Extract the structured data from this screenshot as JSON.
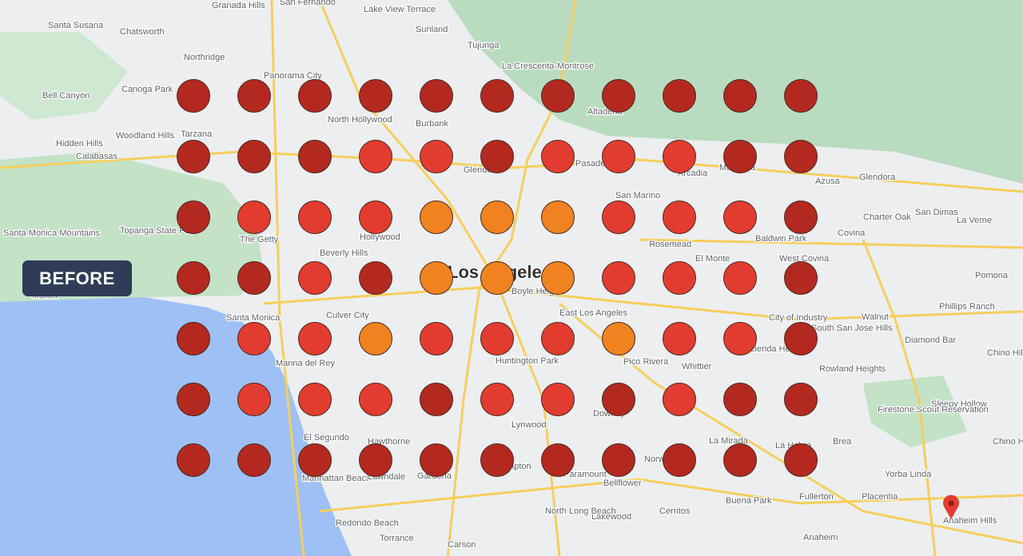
{
  "badge": "BEFORE",
  "legend_colors": {
    "low": "#b3291f",
    "mid": "#e23c30",
    "top": "#f0821f"
  },
  "grid": {
    "rows": [
      [
        "low",
        "low",
        "low",
        "low",
        "low",
        "low",
        "low",
        "low",
        "low",
        "low",
        "low"
      ],
      [
        "low",
        "low",
        "low",
        "mid",
        "mid",
        "low",
        "mid",
        "mid",
        "mid",
        "low",
        "low"
      ],
      [
        "low",
        "mid",
        "mid",
        "mid",
        "top",
        "top",
        "top",
        "mid",
        "mid",
        "mid",
        "low"
      ],
      [
        "low",
        "low",
        "mid",
        "low",
        "top",
        "top",
        "top",
        "mid",
        "mid",
        "mid",
        "low"
      ],
      [
        "low",
        "mid",
        "mid",
        "top",
        "mid",
        "mid",
        "mid",
        "top",
        "mid",
        "mid",
        "low"
      ],
      [
        "low",
        "mid",
        "mid",
        "mid",
        "low",
        "mid",
        "mid",
        "low",
        "mid",
        "low",
        "low"
      ],
      [
        "low",
        "low",
        "low",
        "low",
        "low",
        "low",
        "low",
        "low",
        "low",
        "low",
        "low"
      ]
    ]
  },
  "places": [
    "Santa Susana",
    "Chatsworth",
    "Granada Hills",
    "San Fernando",
    "Lake View Terrace",
    "Sunland",
    "Tujunga",
    "La Crescenta-Montrose",
    "Northridge",
    "Canoga Park",
    "Panorama City",
    "Bell Canyon",
    "Hidden Hills",
    "Calabasas",
    "Tarzana",
    "Woodland Hills",
    "North Hollywood",
    "Burbank",
    "Altadena",
    "Glendale",
    "Pasadena",
    "Arcadia",
    "Monrovia",
    "Azusa",
    "Glendora",
    "San Marino",
    "Topanga State Park",
    "Santa Monica Mountains",
    "The Getty",
    "Beverly Hills",
    "Hollywood",
    "Los Angeles",
    "Rosemead",
    "El Monte",
    "West Covina",
    "Baldwin Park",
    "Covina",
    "Charter Oak",
    "San Dimas",
    "La Verne",
    "Pomona",
    "Malibu",
    "Santa Monica",
    "Culver City",
    "Marina del Rey",
    "East Los Angeles",
    "Boyle Heights",
    "Huntington Park",
    "Pico Rivera",
    "Whittier",
    "Hacienda Heights",
    "Rowland Heights",
    "Walnut",
    "Diamond Bar",
    "Chino Hills",
    "Phillips Ranch",
    "City of Industry",
    "South San Jose Hills",
    "Hawthorne",
    "El Segundo",
    "Manhattan Beach",
    "Lawndale",
    "Gardena",
    "Compton",
    "Lynwood",
    "Downey",
    "Paramount",
    "Bellflower",
    "Norwalk",
    "La Mirada",
    "La Habra",
    "Brea",
    "Sleepy Hollow",
    "Firestone Scout Reservation",
    "Yorba Linda",
    "Fullerton",
    "Placentia",
    "Buena Park",
    "Cerritos",
    "Lakewood",
    "North Long Beach",
    "Redondo Beach",
    "Torrance",
    "Carson",
    "Anaheim",
    "Anaheim Hills",
    "Chino Hills State Park"
  ]
}
